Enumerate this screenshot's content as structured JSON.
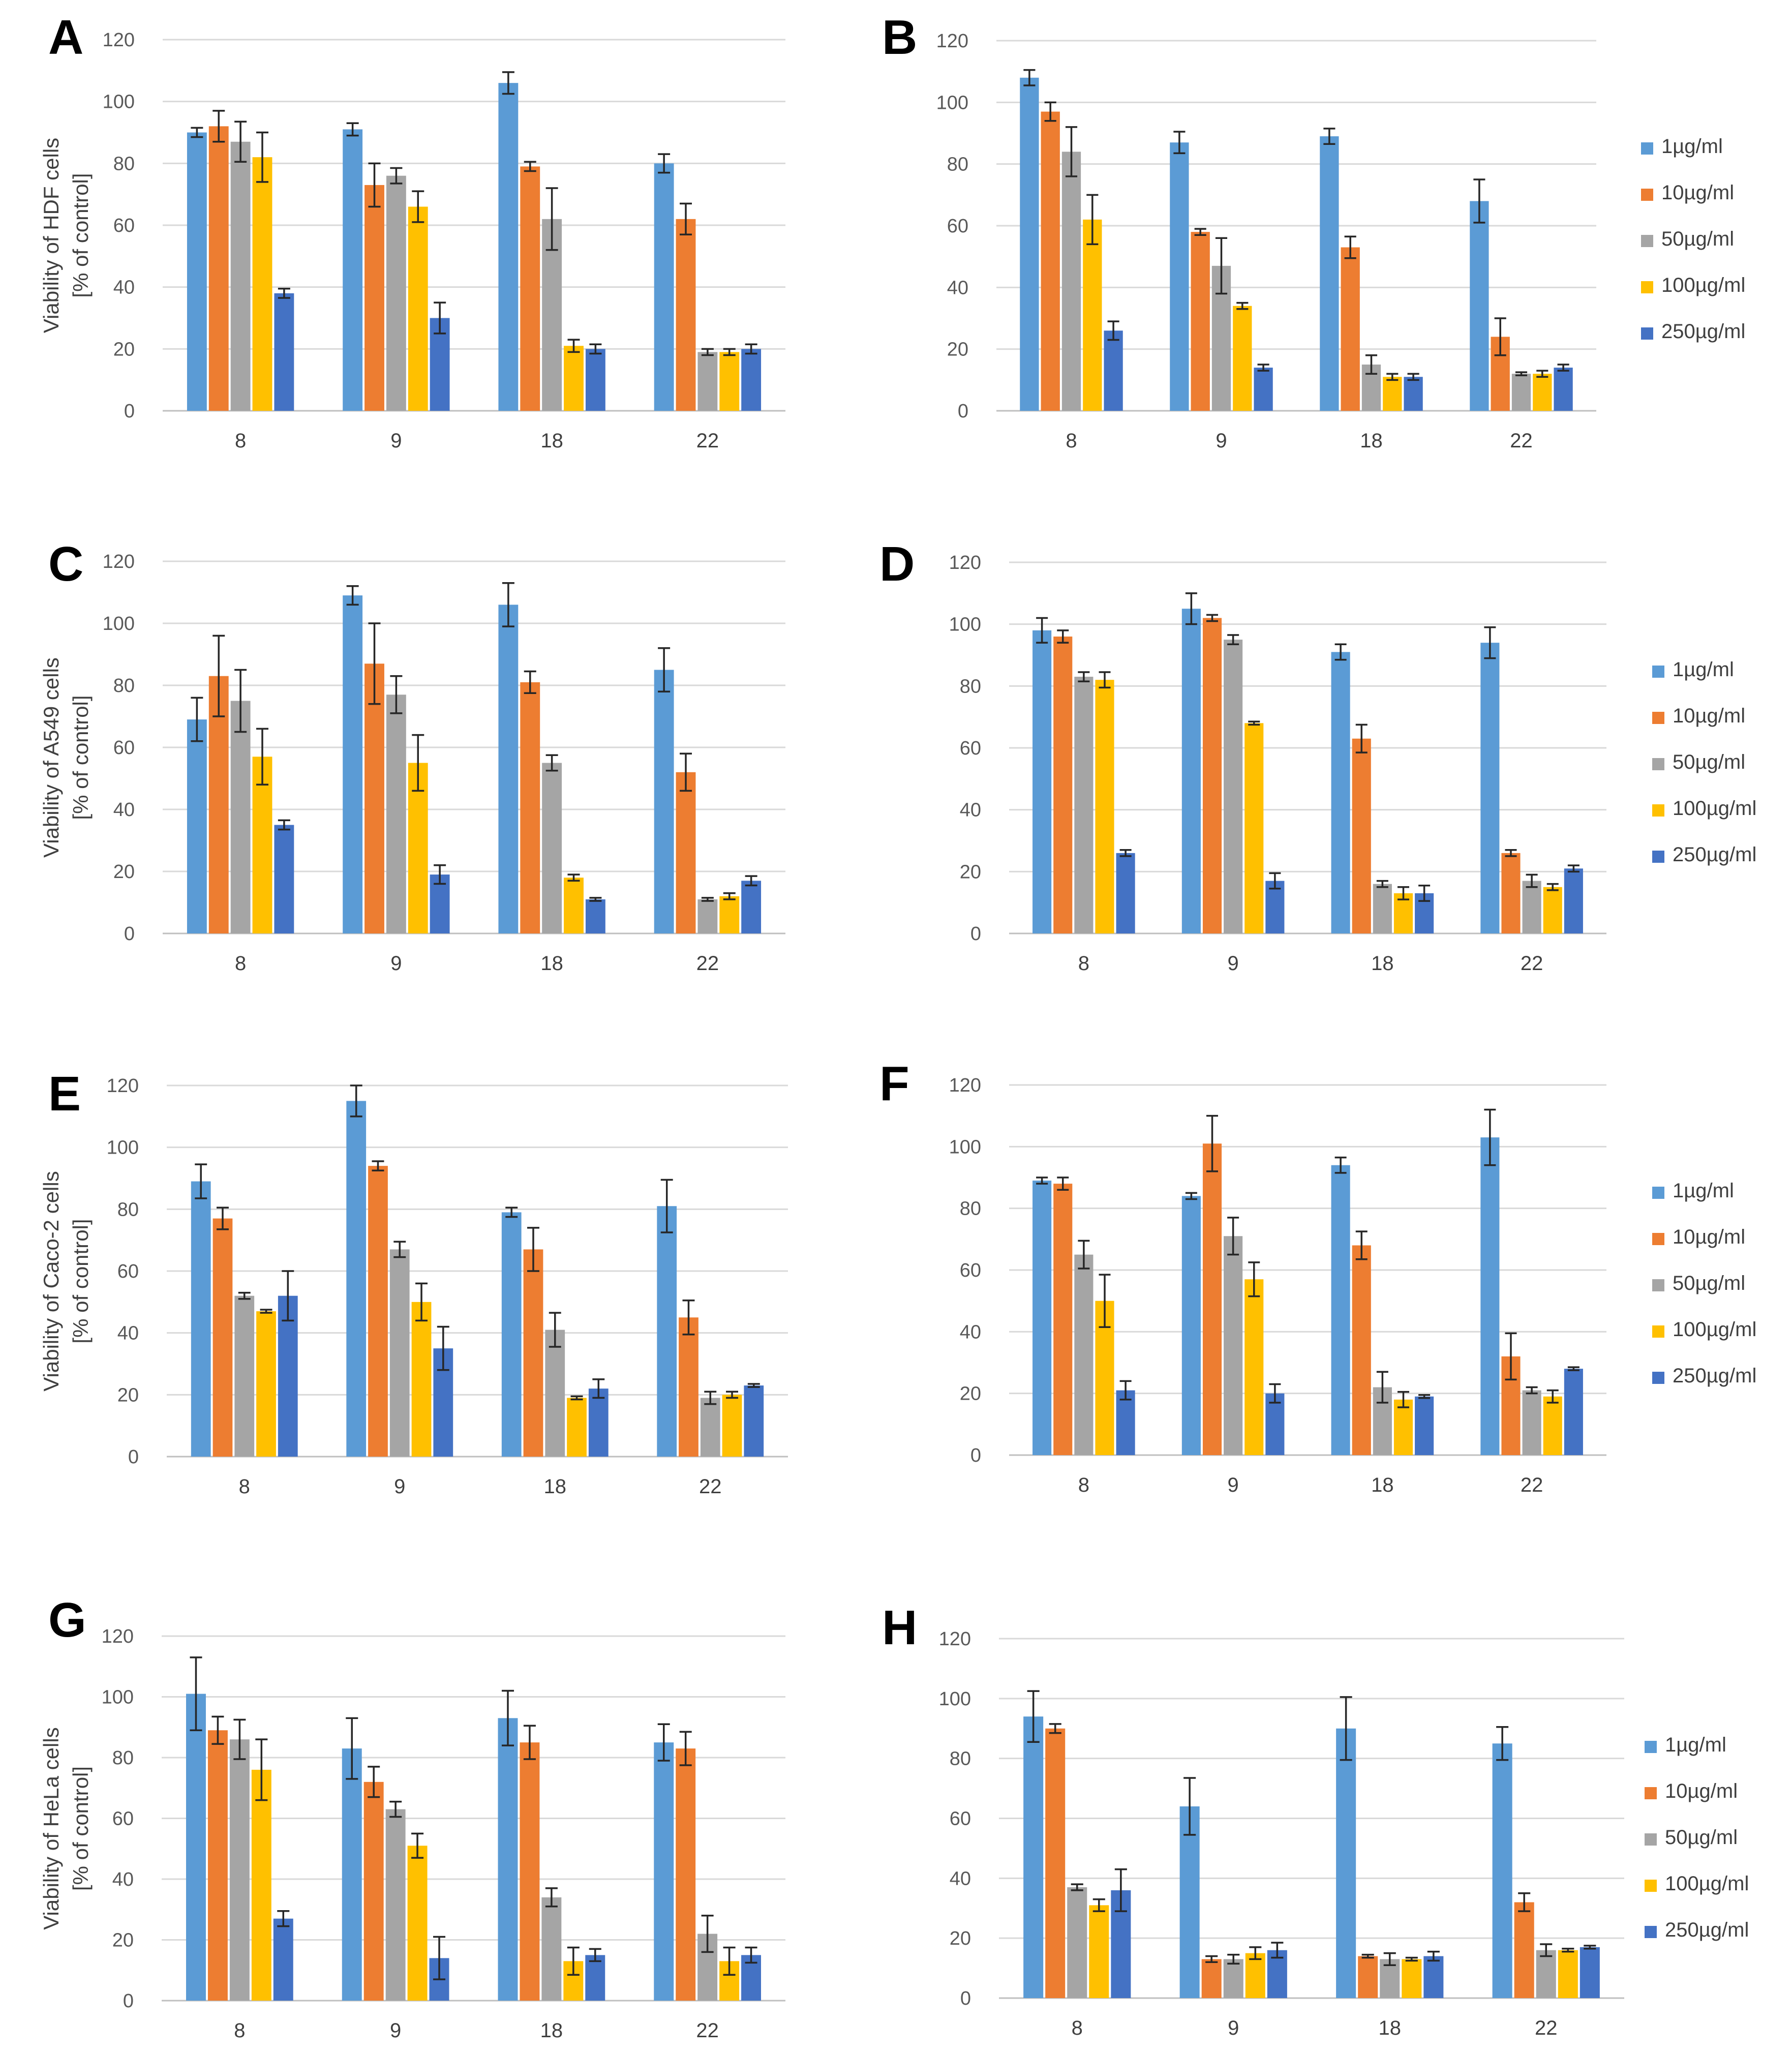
{
  "figure": {
    "series_names": [
      "1µg/ml",
      "10µg/ml",
      "50µg/ml",
      "100µg/ml",
      "250µg/ml"
    ],
    "series_colors": [
      "#5b9bd5",
      "#ed7d31",
      "#a5a5a5",
      "#ffc000",
      "#4472c4"
    ],
    "error_color": "#262626"
  },
  "chart_data": [
    {
      "panel": "A",
      "type": "bar",
      "title": "",
      "xlabel": "",
      "ylabel_lines": [
        "Viability of HDF cells",
        "[% of control]"
      ],
      "ylim": [
        0,
        120
      ],
      "yticks": [
        0,
        20,
        40,
        60,
        80,
        100,
        120
      ],
      "grid": true,
      "legend": "none",
      "categories": [
        "8",
        "9",
        "18",
        "22"
      ],
      "series": [
        {
          "name": "1µg/ml",
          "values": [
            90,
            91,
            106,
            80
          ],
          "errors": [
            1.5,
            2,
            3.5,
            3
          ]
        },
        {
          "name": "10µg/ml",
          "values": [
            92,
            73,
            79,
            62
          ],
          "errors": [
            5,
            7,
            1.5,
            5
          ]
        },
        {
          "name": "50µg/ml",
          "values": [
            87,
            76,
            62,
            19
          ],
          "errors": [
            6.5,
            2.5,
            10,
            1
          ]
        },
        {
          "name": "100µg/ml",
          "values": [
            82,
            66,
            21,
            19
          ],
          "errors": [
            8,
            5,
            2,
            1
          ]
        },
        {
          "name": "250µg/ml",
          "values": [
            38,
            30,
            20,
            20
          ],
          "errors": [
            1.5,
            5,
            1.5,
            1.5
          ]
        }
      ]
    },
    {
      "panel": "B",
      "type": "bar",
      "title": "",
      "xlabel": "",
      "ylabel_lines": [],
      "ylim": [
        0,
        120
      ],
      "yticks": [
        0,
        20,
        40,
        60,
        80,
        100,
        120
      ],
      "grid": true,
      "legend": "right",
      "categories": [
        "8",
        "9",
        "18",
        "22"
      ],
      "series": [
        {
          "name": "1µg/ml",
          "values": [
            108,
            87,
            89,
            68
          ],
          "errors": [
            2.5,
            3.5,
            2.5,
            7
          ]
        },
        {
          "name": "10µg/ml",
          "values": [
            97,
            58,
            53,
            24
          ],
          "errors": [
            3,
            1,
            3.5,
            6
          ]
        },
        {
          "name": "50µg/ml",
          "values": [
            84,
            47,
            15,
            12
          ],
          "errors": [
            8,
            9,
            3,
            0.5
          ]
        },
        {
          "name": "100µg/ml",
          "values": [
            62,
            34,
            11,
            12
          ],
          "errors": [
            8,
            1,
            1,
            1
          ]
        },
        {
          "name": "250µg/ml",
          "values": [
            26,
            14,
            11,
            14
          ],
          "errors": [
            3,
            1,
            1,
            1
          ]
        }
      ]
    },
    {
      "panel": "C",
      "type": "bar",
      "title": "",
      "xlabel": "",
      "ylabel_lines": [
        "Viability of A549 cells",
        "[% of control]"
      ],
      "ylim": [
        0,
        120
      ],
      "yticks": [
        0,
        20,
        40,
        60,
        80,
        100,
        120
      ],
      "grid": true,
      "legend": "none",
      "categories": [
        "8",
        "9",
        "18",
        "22"
      ],
      "series": [
        {
          "name": "1µg/ml",
          "values": [
            69,
            109,
            106,
            85
          ],
          "errors": [
            7,
            3,
            7,
            7
          ]
        },
        {
          "name": "10µg/ml",
          "values": [
            83,
            87,
            81,
            52
          ],
          "errors": [
            13,
            13,
            3.5,
            6
          ]
        },
        {
          "name": "50µg/ml",
          "values": [
            75,
            77,
            55,
            11
          ],
          "errors": [
            10,
            6,
            2.5,
            0.5
          ]
        },
        {
          "name": "100µg/ml",
          "values": [
            57,
            55,
            18,
            12
          ],
          "errors": [
            9,
            9,
            1,
            1
          ]
        },
        {
          "name": "250µg/ml",
          "values": [
            35,
            19,
            11,
            17
          ],
          "errors": [
            1.5,
            3,
            0.5,
            1.5
          ]
        }
      ]
    },
    {
      "panel": "D",
      "type": "bar",
      "title": "",
      "xlabel": "",
      "ylabel_lines": [],
      "ylim": [
        0,
        120
      ],
      "yticks": [
        0,
        20,
        40,
        60,
        80,
        100,
        120
      ],
      "grid": true,
      "legend": "right",
      "categories": [
        "8",
        "9",
        "18",
        "22"
      ],
      "series": [
        {
          "name": "1µg/ml",
          "values": [
            98,
            105,
            91,
            94
          ],
          "errors": [
            4,
            5,
            2.5,
            5
          ]
        },
        {
          "name": "10µg/ml",
          "values": [
            96,
            102,
            63,
            26
          ],
          "errors": [
            2,
            1,
            4.5,
            1
          ]
        },
        {
          "name": "50µg/ml",
          "values": [
            83,
            95,
            16,
            17
          ],
          "errors": [
            1.5,
            1.5,
            1,
            2
          ]
        },
        {
          "name": "100µg/ml",
          "values": [
            82,
            68,
            13,
            15
          ],
          "errors": [
            2.5,
            0.5,
            2,
            1
          ]
        },
        {
          "name": "250µg/ml",
          "values": [
            26,
            17,
            13,
            21
          ],
          "errors": [
            1,
            2.5,
            2.5,
            1
          ]
        }
      ]
    },
    {
      "panel": "E",
      "type": "bar",
      "title": "",
      "xlabel": "",
      "ylabel_lines": [
        "Viability of Caco-2 cells",
        "[% of control]"
      ],
      "ylim": [
        0,
        120
      ],
      "yticks": [
        0,
        20,
        40,
        60,
        80,
        100,
        120
      ],
      "grid": true,
      "legend": "none",
      "categories": [
        "8",
        "9",
        "18",
        "22"
      ],
      "series": [
        {
          "name": "1µg/ml",
          "values": [
            89,
            115,
            79,
            81
          ],
          "errors": [
            5.5,
            5,
            1.5,
            8.5
          ]
        },
        {
          "name": "10µg/ml",
          "values": [
            77,
            94,
            67,
            45
          ],
          "errors": [
            3.5,
            1.5,
            7,
            5.5
          ]
        },
        {
          "name": "50µg/ml",
          "values": [
            52,
            67,
            41,
            19
          ],
          "errors": [
            1,
            2.5,
            5.5,
            2
          ]
        },
        {
          "name": "100µg/ml",
          "values": [
            47,
            50,
            19,
            20
          ],
          "errors": [
            0.5,
            6,
            0.5,
            1
          ]
        },
        {
          "name": "250µg/ml",
          "values": [
            52,
            35,
            22,
            23
          ],
          "errors": [
            8,
            7,
            3,
            0.5
          ]
        }
      ]
    },
    {
      "panel": "F",
      "type": "bar",
      "title": "",
      "xlabel": "",
      "ylabel_lines": [],
      "ylim": [
        0,
        120
      ],
      "yticks": [
        0,
        20,
        40,
        60,
        80,
        100,
        120
      ],
      "grid": true,
      "legend": "right",
      "categories": [
        "8",
        "9",
        "18",
        "22"
      ],
      "series": [
        {
          "name": "1µg/ml",
          "values": [
            89,
            84,
            94,
            103
          ],
          "errors": [
            1,
            1,
            2.5,
            9
          ]
        },
        {
          "name": "10µg/ml",
          "values": [
            88,
            101,
            68,
            32
          ],
          "errors": [
            2,
            9,
            4.5,
            7.5
          ]
        },
        {
          "name": "50µg/ml",
          "values": [
            65,
            71,
            22,
            21
          ],
          "errors": [
            4.5,
            6,
            5,
            1
          ]
        },
        {
          "name": "100µg/ml",
          "values": [
            50,
            57,
            18,
            19
          ],
          "errors": [
            8.5,
            5.5,
            2.5,
            2
          ]
        },
        {
          "name": "250µg/ml",
          "values": [
            21,
            20,
            19,
            28
          ],
          "errors": [
            3,
            3,
            0.5,
            0.5
          ]
        }
      ]
    },
    {
      "panel": "G",
      "type": "bar",
      "title": "",
      "xlabel": "",
      "ylabel_lines": [
        "Viability of HeLa cells",
        "[% of control]"
      ],
      "ylim": [
        0,
        120
      ],
      "yticks": [
        0,
        20,
        40,
        60,
        80,
        100,
        120
      ],
      "grid": true,
      "legend": "none",
      "categories": [
        "8",
        "9",
        "18",
        "22"
      ],
      "series": [
        {
          "name": "1µg/ml",
          "values": [
            101,
            83,
            93,
            85
          ],
          "errors": [
            12,
            10,
            9,
            6
          ]
        },
        {
          "name": "10µg/ml",
          "values": [
            89,
            72,
            85,
            83
          ],
          "errors": [
            4.5,
            5,
            5.5,
            5.5
          ]
        },
        {
          "name": "50µg/ml",
          "values": [
            86,
            63,
            34,
            22
          ],
          "errors": [
            6.5,
            2.5,
            3,
            6
          ]
        },
        {
          "name": "100µg/ml",
          "values": [
            76,
            51,
            13,
            13
          ],
          "errors": [
            10,
            4,
            4.5,
            4.5
          ]
        },
        {
          "name": "250µg/ml",
          "values": [
            27,
            14,
            15,
            15
          ],
          "errors": [
            2.5,
            7,
            2,
            2.5
          ]
        }
      ]
    },
    {
      "panel": "H",
      "type": "bar",
      "title": "",
      "xlabel": "",
      "ylabel_lines": [],
      "ylim": [
        0,
        120
      ],
      "yticks": [
        0,
        20,
        40,
        60,
        80,
        100,
        120
      ],
      "grid": true,
      "legend": "right",
      "categories": [
        "8",
        "9",
        "18",
        "22"
      ],
      "series": [
        {
          "name": "1µg/ml",
          "values": [
            94,
            64,
            90,
            85
          ],
          "errors": [
            8.5,
            9.5,
            10.5,
            5.5
          ]
        },
        {
          "name": "10µg/ml",
          "values": [
            90,
            13,
            14,
            32
          ],
          "errors": [
            1.5,
            1,
            0.5,
            3
          ]
        },
        {
          "name": "50µg/ml",
          "values": [
            37,
            13,
            13,
            16
          ],
          "errors": [
            1,
            1.5,
            2,
            2
          ]
        },
        {
          "name": "100µg/ml",
          "values": [
            31,
            15,
            13,
            16
          ],
          "errors": [
            2,
            2,
            0.5,
            0.5
          ]
        },
        {
          "name": "250µg/ml",
          "values": [
            36,
            16,
            14,
            17
          ],
          "errors": [
            7,
            2.5,
            1.5,
            0.5
          ]
        }
      ]
    }
  ]
}
